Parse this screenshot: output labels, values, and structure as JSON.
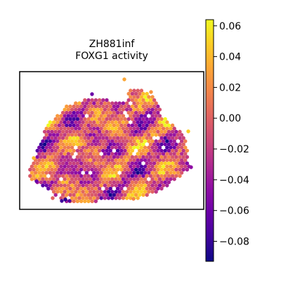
{
  "chart_data": {
    "type": "heatmap",
    "title": [
      "ZH881inf",
      "FOXG1 activity"
    ],
    "xlabel": "",
    "ylabel": "",
    "grid": false,
    "legend": "colorbar-right",
    "colormap": "plasma",
    "colorbar": {
      "vmin": -0.093,
      "vmax": 0.064,
      "ticks": [
        0.06,
        0.04,
        0.02,
        0.0,
        -0.02,
        -0.04,
        -0.06,
        -0.08
      ],
      "tick_labels": [
        "0.06",
        "0.04",
        "0.02",
        "0.00",
        "−0.02",
        "−0.04",
        "−0.06",
        "−0.08"
      ]
    },
    "spatial_spots": {
      "description_of_values": "per-spot FOXG1 activity score on a hexagonal spot grid",
      "value_range": [
        -0.09,
        0.06
      ]
    }
  },
  "colors": {
    "frame": "#000000",
    "background": "#ffffff"
  }
}
